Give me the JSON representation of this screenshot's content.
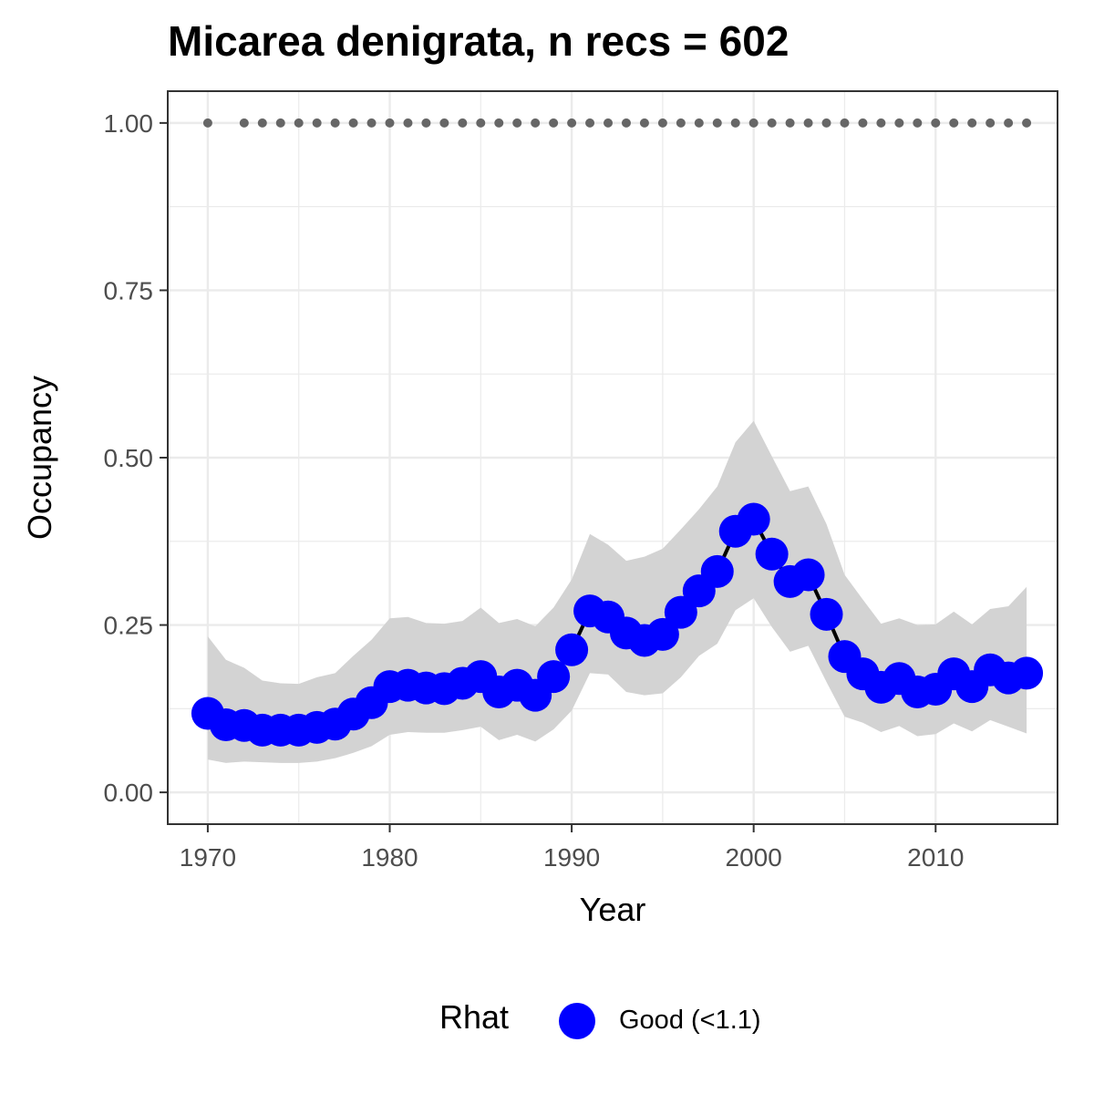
{
  "chart_data": {
    "type": "line",
    "title": "Micarea denigrata, n recs = 602",
    "xlabel": "Year",
    "ylabel": "Occupancy",
    "xlim": [
      1967.8,
      2016.7
    ],
    "ylim": [
      -0.0475,
      1.0475
    ],
    "x_ticks": [
      1970,
      1980,
      1990,
      2000,
      2010
    ],
    "x_tick_labels": [
      "1970",
      "1980",
      "1990",
      "2000",
      "2010"
    ],
    "y_ticks": [
      0,
      0.25,
      0.5,
      0.75,
      1
    ],
    "y_tick_labels": [
      "0.00",
      "0.25",
      "0.50",
      "0.75",
      "1.00"
    ],
    "grid": true,
    "years": [
      1970,
      1971,
      1972,
      1973,
      1974,
      1975,
      1976,
      1977,
      1978,
      1979,
      1980,
      1981,
      1982,
      1983,
      1984,
      1985,
      1986,
      1987,
      1988,
      1989,
      1990,
      1991,
      1992,
      1993,
      1994,
      1995,
      1996,
      1997,
      1998,
      1999,
      2000,
      2001,
      2002,
      2003,
      2004,
      2005,
      2006,
      2007,
      2008,
      2009,
      2010,
      2011,
      2012,
      2013,
      2014,
      2015
    ],
    "series": [
      {
        "name": "Good (<1.1)",
        "values": [
          0.118,
          0.101,
          0.1,
          0.093,
          0.093,
          0.093,
          0.097,
          0.102,
          0.117,
          0.134,
          0.158,
          0.16,
          0.156,
          0.155,
          0.163,
          0.173,
          0.15,
          0.16,
          0.145,
          0.173,
          0.213,
          0.271,
          0.262,
          0.238,
          0.227,
          0.236,
          0.269,
          0.301,
          0.33,
          0.39,
          0.408,
          0.356,
          0.315,
          0.325,
          0.266,
          0.203,
          0.177,
          0.157,
          0.17,
          0.15,
          0.154,
          0.177,
          0.158,
          0.183,
          0.171,
          0.178
        ],
        "lower": [
          0.049,
          0.044,
          0.046,
          0.045,
          0.044,
          0.044,
          0.046,
          0.051,
          0.059,
          0.069,
          0.086,
          0.09,
          0.089,
          0.089,
          0.093,
          0.098,
          0.078,
          0.086,
          0.076,
          0.094,
          0.122,
          0.178,
          0.176,
          0.15,
          0.145,
          0.148,
          0.172,
          0.204,
          0.222,
          0.272,
          0.29,
          0.247,
          0.21,
          0.219,
          0.165,
          0.113,
          0.104,
          0.09,
          0.099,
          0.084,
          0.087,
          0.103,
          0.091,
          0.108,
          0.098,
          0.088
        ],
        "upper": [
          0.233,
          0.198,
          0.186,
          0.167,
          0.163,
          0.162,
          0.172,
          0.178,
          0.204,
          0.228,
          0.26,
          0.262,
          0.253,
          0.252,
          0.256,
          0.276,
          0.253,
          0.259,
          0.248,
          0.276,
          0.318,
          0.386,
          0.37,
          0.346,
          0.352,
          0.364,
          0.393,
          0.423,
          0.457,
          0.523,
          0.555,
          0.502,
          0.45,
          0.457,
          0.401,
          0.325,
          0.288,
          0.252,
          0.26,
          0.25,
          0.251,
          0.27,
          0.251,
          0.274,
          0.278,
          0.307
        ],
        "color": "#0000ff"
      }
    ],
    "records_marker": {
      "years": [
        1970,
        1972,
        1973,
        1974,
        1975,
        1976,
        1977,
        1978,
        1979,
        1980,
        1981,
        1982,
        1983,
        1984,
        1985,
        1986,
        1987,
        1988,
        1989,
        1990,
        1991,
        1992,
        1993,
        1994,
        1995,
        1996,
        1997,
        1998,
        1999,
        2000,
        2001,
        2002,
        2003,
        2004,
        2005,
        2006,
        2007,
        2008,
        2009,
        2010,
        2011,
        2012,
        2013,
        2014,
        2015
      ],
      "value": 1.0,
      "color": "#666666"
    },
    "ribbon_color": "#d3d3d3",
    "line_color": "#000000",
    "legend": {
      "title": "Rhat",
      "label": "Good (<1.1)",
      "position": "bottom",
      "color": "#0000ff"
    }
  }
}
